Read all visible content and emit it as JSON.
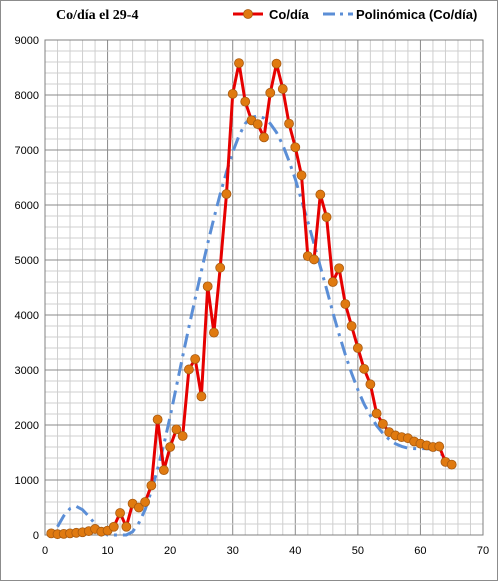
{
  "chart_data": {
    "type": "line",
    "title": "Co/día el 29-4",
    "xlabel": "",
    "ylabel": "",
    "xlim": [
      0,
      70
    ],
    "ylim": [
      0,
      9000
    ],
    "x_ticks": [
      "0",
      "10",
      "20",
      "30",
      "40",
      "50",
      "60",
      "70"
    ],
    "y_ticks": [
      "0",
      "1000",
      "2000",
      "3000",
      "4000",
      "5000",
      "6000",
      "7000",
      "8000",
      "9000"
    ],
    "grid": "on (major and minor)",
    "legend_position": "top-right",
    "series": [
      {
        "name": "Co/día",
        "style": "line-with-markers",
        "color": "#e60000",
        "marker_color": "#e07a10",
        "x": [
          1,
          2,
          3,
          4,
          5,
          6,
          7,
          8,
          9,
          10,
          11,
          12,
          13,
          14,
          15,
          16,
          17,
          18,
          19,
          20,
          21,
          22,
          23,
          24,
          25,
          26,
          27,
          28,
          29,
          30,
          31,
          32,
          33,
          34,
          35,
          36,
          37,
          38,
          39,
          40,
          41,
          42,
          43,
          44,
          45,
          46,
          47,
          48,
          49,
          50,
          51,
          52,
          53,
          54,
          55,
          56,
          57,
          58,
          59,
          60,
          61,
          62,
          63,
          64,
          65
        ],
        "values": [
          30,
          15,
          20,
          30,
          40,
          50,
          70,
          110,
          60,
          80,
          150,
          400,
          150,
          570,
          500,
          600,
          900,
          2100,
          1180,
          1600,
          1920,
          1800,
          3010,
          3200,
          2520,
          4520,
          3680,
          4860,
          6200,
          8020,
          8580,
          7880,
          7540,
          7470,
          7230,
          8040,
          8570,
          8110,
          7480,
          7050,
          6540,
          5070,
          5010,
          6190,
          5780,
          4600,
          4850,
          4200,
          3800,
          3400,
          3020,
          2740,
          2210,
          2020,
          1870,
          1810,
          1780,
          1760,
          1700,
          1660,
          1630,
          1600,
          1610,
          1330,
          1280
        ]
      },
      {
        "name": "Polinómica (Co/día)",
        "style": "dashed-trendline",
        "color": "#5b8ed6",
        "x": [
          2,
          3,
          4,
          5,
          6,
          7,
          8,
          9,
          10,
          11,
          12,
          13,
          14,
          15,
          16,
          17,
          18,
          19,
          20,
          21,
          22,
          23,
          24,
          25,
          26,
          27,
          28,
          29,
          30,
          31,
          32,
          33,
          34,
          35,
          36,
          37,
          38,
          39,
          40,
          41,
          42,
          43,
          44,
          45,
          46,
          47,
          48,
          49,
          50,
          51,
          52,
          53,
          54,
          55,
          56,
          57,
          58,
          59,
          60,
          61,
          62,
          63,
          64,
          65
        ],
        "values": [
          150,
          350,
          480,
          520,
          460,
          340,
          200,
          80,
          0,
          -60,
          -80,
          -40,
          60,
          220,
          460,
          800,
          1200,
          1650,
          2150,
          2700,
          3250,
          3780,
          4300,
          4800,
          5300,
          5760,
          6200,
          6600,
          6960,
          7260,
          7480,
          7590,
          7620,
          7580,
          7480,
          7320,
          7090,
          6800,
          6470,
          6090,
          5700,
          5290,
          4880,
          4470,
          4050,
          3650,
          3280,
          2940,
          2640,
          2380,
          2170,
          1990,
          1850,
          1740,
          1660,
          1610,
          1580,
          1570,
          1570,
          1570,
          1560,
          1500,
          1410,
          1240
        ]
      }
    ]
  }
}
